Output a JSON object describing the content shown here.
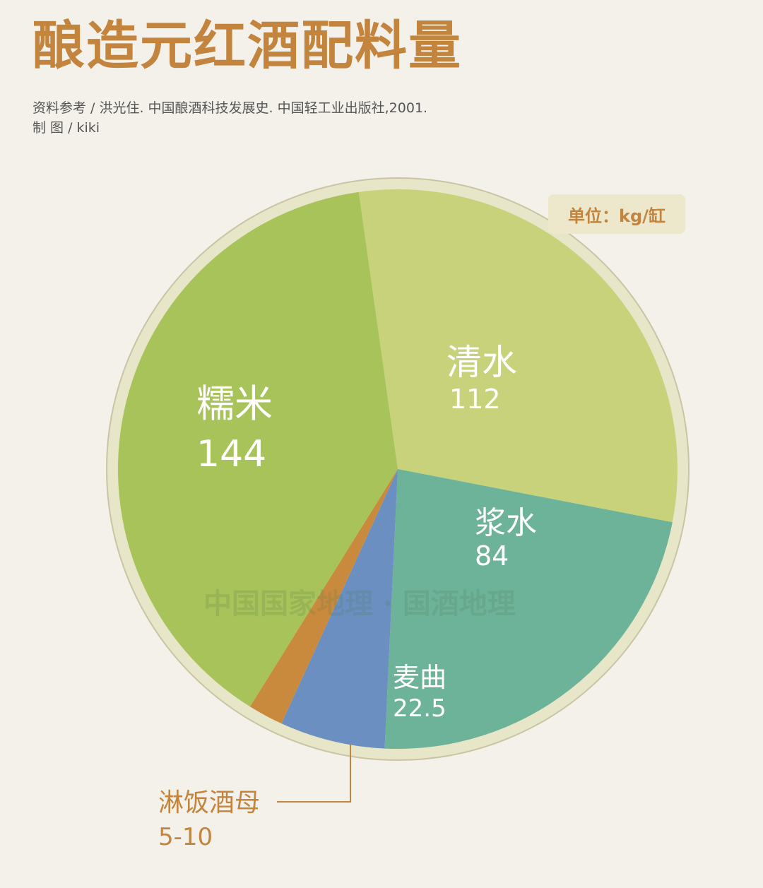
{
  "title": "酿造元红酒配料量",
  "source": "资料参考 /  洪光住. 中国酿酒科技发展史. 中国轻工业出版社,2001.",
  "maker": "制       图 /  kiki",
  "unit": "单位：kg/缸",
  "watermark": "中国国家地理 · 国酒地理",
  "colors": {
    "rice": "#a8c35a",
    "water": "#c8d27b",
    "slurry": "#6db39a",
    "koji": "#6a8fc0",
    "starter": "#c98a3e",
    "rim": "#e8e6c8",
    "accent": "#c3843d"
  },
  "chart_data": {
    "type": "pie",
    "title": "酿造元红酒配料量",
    "unit": "kg/缸",
    "slices": [
      {
        "label": "清水",
        "value_text": "112",
        "value": 112
      },
      {
        "label": "浆水",
        "value_text": "84",
        "value": 84
      },
      {
        "label": "麦曲",
        "value_text": "22.5",
        "value": 22.5
      },
      {
        "label": "淋饭酒母",
        "value_text": "5-10",
        "value": 7.5
      },
      {
        "label": "糯米",
        "value_text": "144",
        "value": 144
      }
    ]
  }
}
